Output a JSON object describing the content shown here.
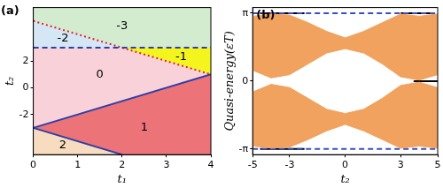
{
  "chart_data": [
    {
      "type": "phase_diagram",
      "title": "(a)",
      "x_label": "t₁",
      "y_label": "t₂",
      "xlim": [
        0,
        4
      ],
      "ylim": [
        -5,
        6
      ],
      "xticks": [
        0,
        1,
        2,
        3,
        4
      ],
      "yticks": [
        -2,
        0,
        2
      ],
      "grid": false,
      "regions": [
        {
          "label": "-3",
          "color": "#d3ebcf",
          "vertices": [
            [
              0,
              5
            ],
            [
              0,
              6
            ],
            [
              4,
              6
            ],
            [
              4,
              3
            ],
            [
              2,
              3
            ]
          ]
        },
        {
          "label": "-2",
          "color": "#d5e6f4",
          "vertices": [
            [
              0,
              3
            ],
            [
              0,
              5
            ],
            [
              2,
              3
            ]
          ]
        },
        {
          "label": "-1",
          "color": "#f5f51e",
          "vertices": [
            [
              2,
              3
            ],
            [
              4,
              3
            ],
            [
              4,
              1
            ]
          ]
        },
        {
          "label": "0",
          "color": "#f8d2d8",
          "vertices": [
            [
              0,
              3
            ],
            [
              2,
              3
            ],
            [
              4,
              1
            ],
            [
              0,
              -3
            ]
          ]
        },
        {
          "label": "1",
          "color": "#ec7378",
          "vertices": [
            [
              0,
              -3
            ],
            [
              4,
              1
            ],
            [
              4,
              -5
            ],
            [
              2,
              -5
            ]
          ]
        },
        {
          "label": "2",
          "color": "#f8dcc0",
          "vertices": [
            [
              0,
              -3
            ],
            [
              2,
              -5
            ],
            [
              0,
              -5
            ]
          ]
        }
      ],
      "lines": [
        {
          "color": "#2f3fa8",
          "line_style": "solid",
          "x": [
            0,
            4
          ],
          "y": [
            -3,
            1
          ]
        },
        {
          "color": "#2f3fa8",
          "line_style": "solid",
          "x": [
            0,
            2
          ],
          "y": [
            -3,
            -5
          ]
        },
        {
          "color": "#2f3fa8",
          "line_style": "dashed",
          "x": [
            0,
            4
          ],
          "y": [
            3,
            3
          ]
        },
        {
          "color": "#e0202a",
          "line_style": "dotted",
          "x": [
            0,
            4
          ],
          "y": [
            5,
            1
          ]
        }
      ]
    },
    {
      "type": "band_spectrum",
      "title": "(b)",
      "x_label": "t₂",
      "y_label": "Quasi-energy(εT)",
      "xlim": [
        -5,
        5
      ],
      "ylim": [
        -3.4,
        3.4
      ],
      "xticks": [
        -5,
        -3,
        0,
        3,
        5
      ],
      "yticks": [
        {
          "value": -3.1416,
          "label": "-π"
        },
        0,
        {
          "value": 3.1416,
          "label": "π"
        }
      ],
      "grid": false,
      "x": [
        -5,
        -4,
        -3,
        -2,
        -1,
        0,
        1,
        2,
        3,
        4,
        5
      ],
      "bands": [
        {
          "color": "#f1a25e",
          "lower": [
            0.5,
            0.15,
            0.3,
            0.8,
            1.3,
            1.5,
            1.3,
            0.8,
            0.2,
            0.05,
            0.3
          ],
          "upper": [
            3.0,
            3.1,
            3.05,
            2.7,
            2.3,
            2.0,
            2.3,
            2.7,
            3.1,
            3.0,
            3.1
          ]
        },
        {
          "color": "#f1a25e",
          "lower": [
            -3.0,
            -3.1,
            -3.05,
            -2.7,
            -2.3,
            -2.0,
            -2.3,
            -2.7,
            -3.1,
            -3.0,
            -3.1
          ],
          "upper": [
            -0.5,
            -0.15,
            -0.3,
            -0.8,
            -1.3,
            -1.5,
            -1.3,
            -0.8,
            -0.2,
            -0.05,
            -0.3
          ]
        }
      ],
      "lines": [
        {
          "color": "#3a4fbf",
          "line_style": "dashed",
          "x": [
            -5,
            5
          ],
          "y": [
            3.1416,
            3.1416
          ]
        },
        {
          "color": "#3a4fbf",
          "line_style": "dashed",
          "x": [
            -5,
            5
          ],
          "y": [
            -3.1416,
            -3.1416
          ]
        },
        {
          "color": "#000000",
          "line_style": "solid",
          "x": [
            -4.6,
            -2.2
          ],
          "y": [
            3.1416,
            3.1416
          ]
        },
        {
          "color": "#000000",
          "line_style": "solid",
          "x": [
            -4.6,
            -2.2
          ],
          "y": [
            -3.1416,
            -3.1416
          ]
        },
        {
          "color": "#000000",
          "line_style": "solid",
          "x": [
            3,
            4.8
          ],
          "y": [
            3.1416,
            3.1416
          ]
        },
        {
          "color": "#000000",
          "line_style": "solid",
          "x": [
            3.7,
            5
          ],
          "y": [
            0,
            0
          ]
        }
      ]
    }
  ]
}
